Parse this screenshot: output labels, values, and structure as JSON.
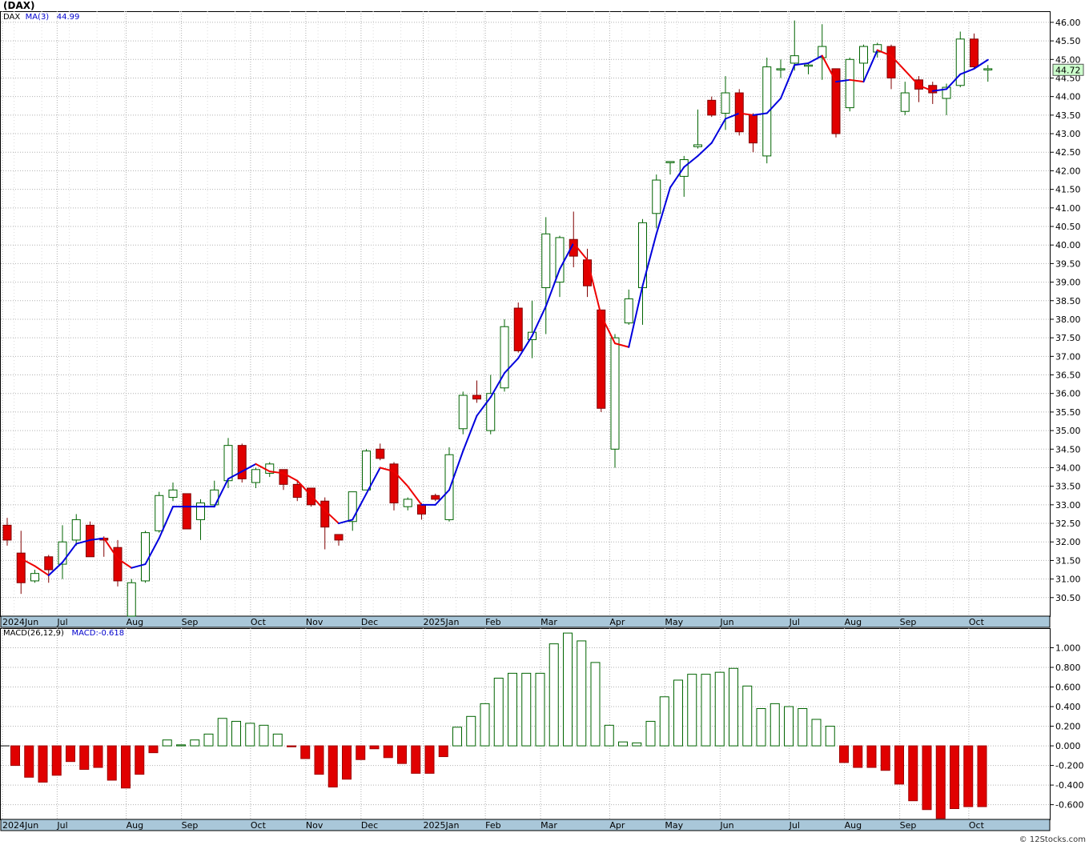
{
  "header": {
    "title": "(DAX)",
    "ma_label": "MA(3)",
    "ma_value": "44.99",
    "symbol": "DAX"
  },
  "macd_header": {
    "label": "MACD(26,12,9)",
    "value_text": "MACD:-0.618"
  },
  "last_price_label": "44.72",
  "credit": "© 12Stocks.com",
  "colors": {
    "up_candle_border": "#006400",
    "down_candle_fill": "#e00000",
    "ma_up": "#0000dd",
    "ma_down": "#ee0000",
    "macd_positive_border": "#006400",
    "macd_negative_fill": "#e00000",
    "last_price_bg": "#ccffcc",
    "axis_band": "#a9c7d9"
  },
  "chart_data": [
    {
      "type": "candlestick",
      "title": "(DAX)",
      "ylim": [
        30.0,
        46.3
      ],
      "y_ticks": [
        "30.50",
        "31.00",
        "31.50",
        "32.00",
        "32.50",
        "33.00",
        "33.50",
        "34.00",
        "34.50",
        "35.00",
        "35.50",
        "36.00",
        "36.50",
        "37.00",
        "37.50",
        "38.00",
        "38.50",
        "39.00",
        "39.50",
        "40.00",
        "40.50",
        "41.00",
        "41.50",
        "42.00",
        "42.50",
        "43.00",
        "43.50",
        "44.00",
        "44.50",
        "45.00",
        "45.50",
        "46.00"
      ],
      "x_labels": [
        {
          "label": "2024Jun",
          "index": -0.5
        },
        {
          "label": "Jul",
          "index": 4
        },
        {
          "label": "Aug",
          "index": 9
        },
        {
          "label": "Sep",
          "index": 13
        },
        {
          "label": "Oct",
          "index": 18
        },
        {
          "label": "Nov",
          "index": 22
        },
        {
          "label": "Dec",
          "index": 26
        },
        {
          "label": "2025Jan",
          "index": 30.5
        },
        {
          "label": "Feb",
          "index": 35
        },
        {
          "label": "Mar",
          "index": 39
        },
        {
          "label": "Apr",
          "index": 44
        },
        {
          "label": "May",
          "index": 48
        },
        {
          "label": "Jun",
          "index": 52
        },
        {
          "label": "Jul",
          "index": 57
        },
        {
          "label": "Aug",
          "index": 61
        },
        {
          "label": "Sep",
          "index": 65
        },
        {
          "label": "Oct",
          "index": 70
        }
      ],
      "candles": [
        {
          "o": 32.45,
          "h": 32.65,
          "l": 31.9,
          "c": 32.05
        },
        {
          "o": 31.7,
          "h": 32.3,
          "l": 30.6,
          "c": 30.9
        },
        {
          "o": 30.95,
          "h": 31.25,
          "l": 30.9,
          "c": 31.15
        },
        {
          "o": 31.6,
          "h": 31.65,
          "l": 30.9,
          "c": 31.25
        },
        {
          "o": 31.4,
          "h": 32.45,
          "l": 31.0,
          "c": 32.0
        },
        {
          "o": 32.05,
          "h": 32.75,
          "l": 31.9,
          "c": 32.6
        },
        {
          "o": 32.45,
          "h": 32.55,
          "l": 31.6,
          "c": 31.6
        },
        {
          "o": 32.1,
          "h": 32.15,
          "l": 31.6,
          "c": 32.05
        },
        {
          "o": 31.85,
          "h": 32.05,
          "l": 30.8,
          "c": 30.95
        },
        {
          "o": 30.0,
          "h": 31.0,
          "l": 30.0,
          "c": 30.9
        },
        {
          "o": 30.95,
          "h": 32.3,
          "l": 30.9,
          "c": 32.25
        },
        {
          "o": 32.3,
          "h": 33.35,
          "l": 32.25,
          "c": 33.25
        },
        {
          "o": 33.2,
          "h": 33.6,
          "l": 33.1,
          "c": 33.4
        },
        {
          "o": 33.3,
          "h": 33.3,
          "l": 32.35,
          "c": 32.35
        },
        {
          "o": 32.6,
          "h": 33.15,
          "l": 32.05,
          "c": 33.05
        },
        {
          "o": 33.0,
          "h": 33.65,
          "l": 32.95,
          "c": 33.4
        },
        {
          "o": 33.65,
          "h": 34.8,
          "l": 33.45,
          "c": 34.6
        },
        {
          "o": 34.6,
          "h": 34.65,
          "l": 33.6,
          "c": 33.7
        },
        {
          "o": 33.6,
          "h": 34.0,
          "l": 33.45,
          "c": 33.95
        },
        {
          "o": 33.85,
          "h": 34.15,
          "l": 33.75,
          "c": 34.1
        },
        {
          "o": 33.95,
          "h": 33.95,
          "l": 33.4,
          "c": 33.55
        },
        {
          "o": 33.55,
          "h": 33.65,
          "l": 33.1,
          "c": 33.2
        },
        {
          "o": 33.45,
          "h": 33.45,
          "l": 32.95,
          "c": 33.0
        },
        {
          "o": 33.1,
          "h": 33.2,
          "l": 31.8,
          "c": 32.4
        },
        {
          "o": 32.2,
          "h": 32.2,
          "l": 31.9,
          "c": 32.05
        },
        {
          "o": 32.55,
          "h": 33.35,
          "l": 32.3,
          "c": 33.35
        },
        {
          "o": 33.4,
          "h": 34.5,
          "l": 33.4,
          "c": 34.45
        },
        {
          "o": 34.5,
          "h": 34.65,
          "l": 34.2,
          "c": 34.25
        },
        {
          "o": 34.1,
          "h": 34.15,
          "l": 32.85,
          "c": 33.05
        },
        {
          "o": 32.95,
          "h": 33.2,
          "l": 32.85,
          "c": 33.15
        },
        {
          "o": 33.0,
          "h": 33.05,
          "l": 32.6,
          "c": 32.75
        },
        {
          "o": 33.25,
          "h": 33.3,
          "l": 33.1,
          "c": 33.15
        },
        {
          "o": 32.6,
          "h": 34.55,
          "l": 32.55,
          "c": 34.35
        },
        {
          "o": 35.05,
          "h": 36.05,
          "l": 34.9,
          "c": 35.95
        },
        {
          "o": 35.95,
          "h": 36.35,
          "l": 35.75,
          "c": 35.85
        },
        {
          "o": 35.0,
          "h": 36.5,
          "l": 34.9,
          "c": 36.0
        },
        {
          "o": 36.15,
          "h": 38.0,
          "l": 36.05,
          "c": 37.8
        },
        {
          "o": 38.3,
          "h": 38.45,
          "l": 37.1,
          "c": 37.15
        },
        {
          "o": 37.45,
          "h": 38.5,
          "l": 36.95,
          "c": 37.65
        },
        {
          "o": 38.85,
          "h": 40.75,
          "l": 37.6,
          "c": 40.3
        },
        {
          "o": 39.0,
          "h": 40.25,
          "l": 38.6,
          "c": 40.2
        },
        {
          "o": 40.15,
          "h": 40.9,
          "l": 39.4,
          "c": 39.7
        },
        {
          "o": 39.6,
          "h": 39.9,
          "l": 38.6,
          "c": 38.9
        },
        {
          "o": 38.25,
          "h": 38.25,
          "l": 35.5,
          "c": 35.6
        },
        {
          "o": 34.5,
          "h": 37.6,
          "l": 34.0,
          "c": 37.5
        },
        {
          "o": 37.9,
          "h": 38.8,
          "l": 37.85,
          "c": 38.55
        },
        {
          "o": 38.85,
          "h": 40.7,
          "l": 37.85,
          "c": 40.6
        },
        {
          "o": 40.85,
          "h": 41.9,
          "l": 40.45,
          "c": 41.75
        },
        {
          "o": 42.25,
          "h": 42.25,
          "l": 41.9,
          "c": 42.25
        },
        {
          "o": 41.85,
          "h": 42.4,
          "l": 41.3,
          "c": 42.3
        },
        {
          "o": 42.65,
          "h": 43.65,
          "l": 42.6,
          "c": 42.7
        },
        {
          "o": 43.9,
          "h": 44.0,
          "l": 43.45,
          "c": 43.5
        },
        {
          "o": 43.55,
          "h": 44.55,
          "l": 43.1,
          "c": 44.1
        },
        {
          "o": 44.1,
          "h": 44.2,
          "l": 42.95,
          "c": 43.05
        },
        {
          "o": 43.5,
          "h": 43.55,
          "l": 42.5,
          "c": 42.75
        },
        {
          "o": 42.4,
          "h": 45.05,
          "l": 42.2,
          "c": 44.8
        },
        {
          "o": 44.75,
          "h": 45.0,
          "l": 44.5,
          "c": 44.75
        },
        {
          "o": 44.9,
          "h": 46.05,
          "l": 44.7,
          "c": 45.1
        },
        {
          "o": 44.85,
          "h": 44.9,
          "l": 44.6,
          "c": 44.85
        },
        {
          "o": 45.05,
          "h": 45.95,
          "l": 44.45,
          "c": 45.35
        },
        {
          "o": 44.75,
          "h": 44.75,
          "l": 42.9,
          "c": 43.0
        },
        {
          "o": 43.7,
          "h": 45.05,
          "l": 43.6,
          "c": 45.0
        },
        {
          "o": 44.9,
          "h": 45.4,
          "l": 44.4,
          "c": 45.35
        },
        {
          "o": 45.2,
          "h": 45.45,
          "l": 45.05,
          "c": 45.4
        },
        {
          "o": 45.35,
          "h": 45.4,
          "l": 44.2,
          "c": 44.5
        },
        {
          "o": 43.6,
          "h": 44.4,
          "l": 43.5,
          "c": 44.1
        },
        {
          "o": 44.45,
          "h": 44.55,
          "l": 43.85,
          "c": 44.2
        },
        {
          "o": 44.3,
          "h": 44.4,
          "l": 43.8,
          "c": 44.1
        },
        {
          "o": 43.95,
          "h": 44.35,
          "l": 43.5,
          "c": 44.25
        },
        {
          "o": 44.3,
          "h": 45.75,
          "l": 44.25,
          "c": 45.55
        },
        {
          "o": 45.55,
          "h": 45.7,
          "l": 44.75,
          "c": 44.8
        },
        {
          "o": 44.75,
          "h": 44.85,
          "l": 44.4,
          "c": 44.75
        }
      ],
      "ma": [
        null,
        31.55,
        31.35,
        31.1,
        31.45,
        31.95,
        32.05,
        32.1,
        31.55,
        31.3,
        31.4,
        32.1,
        32.95,
        32.95,
        32.95,
        32.95,
        33.7,
        33.9,
        34.1,
        33.9,
        33.85,
        33.65,
        33.25,
        32.85,
        32.5,
        32.6,
        33.3,
        34.0,
        33.9,
        33.5,
        33.0,
        33.0,
        33.4,
        34.45,
        35.4,
        35.9,
        36.55,
        36.95,
        37.55,
        38.35,
        39.35,
        40.05,
        39.6,
        38.1,
        37.35,
        37.25,
        38.9,
        40.3,
        41.55,
        42.1,
        42.4,
        42.75,
        43.4,
        43.55,
        43.5,
        43.55,
        43.95,
        44.85,
        44.9,
        45.1,
        44.4,
        44.45,
        44.4,
        45.25,
        45.1,
        44.7,
        44.3,
        44.15,
        44.2,
        44.6,
        44.75,
        44.99
      ],
      "last_price": 44.72
    },
    {
      "type": "bar",
      "title": "MACD(26,12,9)",
      "ylim": [
        -0.75,
        1.2
      ],
      "y_ticks": [
        "-0.600",
        "-0.400",
        "-0.200",
        "0.000",
        "0.200",
        "0.400",
        "0.600",
        "0.800",
        "1.000"
      ],
      "x_labels": [
        "2024Jun",
        "Jul",
        "Aug",
        "Sep",
        "Oct",
        "Nov",
        "Dec",
        "2025Jan",
        "Feb",
        "Mar",
        "Apr",
        "May",
        "Jun",
        "Jul",
        "Aug",
        "Sep",
        "Oct"
      ],
      "values": [
        -0.2,
        -0.32,
        -0.37,
        -0.3,
        -0.16,
        -0.24,
        -0.22,
        -0.35,
        -0.43,
        -0.29,
        -0.07,
        0.06,
        0.01,
        0.06,
        0.12,
        0.28,
        0.25,
        0.23,
        0.21,
        0.12,
        -0.01,
        -0.13,
        -0.29,
        -0.42,
        -0.34,
        -0.14,
        -0.03,
        -0.12,
        -0.18,
        -0.28,
        -0.28,
        -0.11,
        0.19,
        0.3,
        0.43,
        0.69,
        0.74,
        0.74,
        0.74,
        1.04,
        1.15,
        1.07,
        0.85,
        0.21,
        0.04,
        0.03,
        0.25,
        0.5,
        0.67,
        0.73,
        0.73,
        0.75,
        0.79,
        0.61,
        0.38,
        0.43,
        0.4,
        0.38,
        0.27,
        0.2,
        -0.17,
        -0.22,
        -0.22,
        -0.25,
        -0.39,
        -0.56,
        -0.65,
        -0.74,
        -0.64,
        -0.62,
        -0.62
      ]
    }
  ]
}
